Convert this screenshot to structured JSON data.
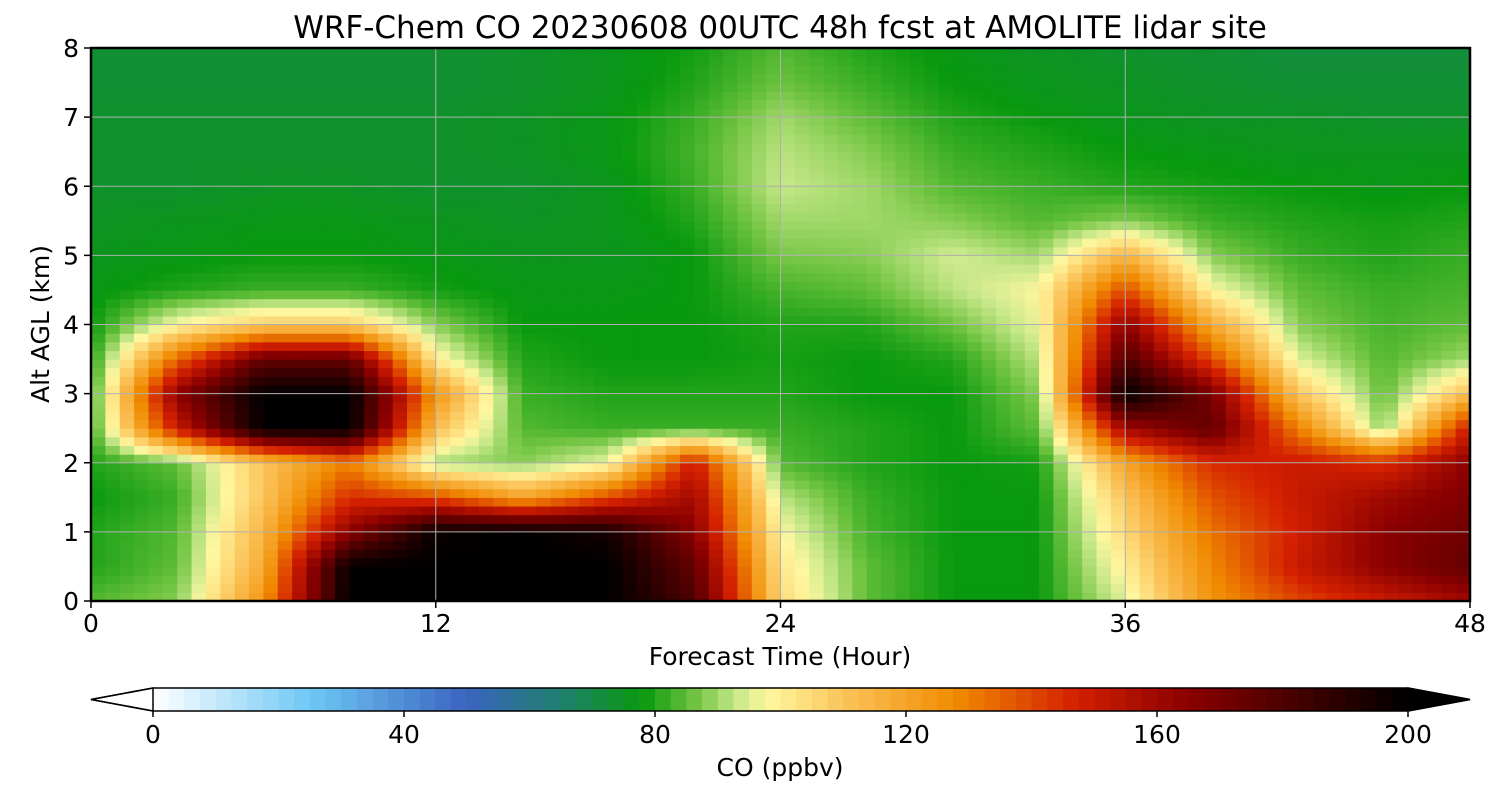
{
  "chart_data": {
    "type": "heatmap",
    "title": "WRF-Chem CO  20230608 00UTC 48h fcst at AMOLITE lidar site",
    "xlabel": "Forecast Time (Hour)",
    "ylabel": "Alt AGL (km)",
    "xlim": [
      0,
      48
    ],
    "ylim": [
      0,
      8
    ],
    "x_ticks": [
      0,
      12,
      24,
      36,
      48
    ],
    "y_ticks": [
      0,
      1,
      2,
      3,
      4,
      5,
      6,
      7,
      8
    ],
    "grid": true,
    "x": [
      0,
      3,
      6,
      9,
      12,
      15,
      18,
      21,
      24,
      27,
      30,
      33,
      36,
      39,
      42,
      45,
      48
    ],
    "y": [
      0,
      0.5,
      1,
      1.5,
      2,
      2.5,
      3,
      3.5,
      4,
      4.5,
      5,
      5.5,
      6,
      6.5,
      7,
      7.5,
      8
    ],
    "z": [
      [
        84,
        88,
        125,
        200,
        200,
        200,
        200,
        180,
        105,
        85,
        78,
        78,
        95,
        125,
        140,
        150,
        160
      ],
      [
        80,
        85,
        118,
        200,
        200,
        200,
        200,
        175,
        102,
        85,
        78,
        78,
        100,
        128,
        150,
        165,
        175
      ],
      [
        80,
        84,
        115,
        165,
        198,
        200,
        195,
        165,
        98,
        83,
        78,
        78,
        105,
        132,
        148,
        165,
        172
      ],
      [
        78,
        82,
        110,
        145,
        140,
        120,
        140,
        160,
        92,
        82,
        78,
        78,
        110,
        138,
        150,
        160,
        168
      ],
      [
        80,
        85,
        110,
        130,
        90,
        88,
        96,
        150,
        84,
        80,
        78,
        79,
        120,
        145,
        150,
        145,
        165
      ],
      [
        82,
        150,
        200,
        200,
        112,
        84,
        82,
        82,
        82,
        80,
        78,
        85,
        160,
        175,
        130,
        88,
        150
      ],
      [
        82,
        165,
        200,
        200,
        125,
        82,
        80,
        80,
        80,
        78,
        78,
        88,
        200,
        170,
        110,
        85,
        112
      ],
      [
        80,
        135,
        175,
        175,
        100,
        80,
        78,
        78,
        79,
        78,
        80,
        92,
        180,
        140,
        95,
        84,
        90
      ],
      [
        78,
        98,
        108,
        108,
        88,
        78,
        78,
        78,
        80,
        80,
        86,
        96,
        165,
        118,
        88,
        83,
        85
      ],
      [
        77,
        80,
        82,
        82,
        79,
        77,
        77,
        78,
        83,
        85,
        92,
        98,
        140,
        98,
        85,
        82,
        83
      ],
      [
        76,
        77,
        78,
        78,
        77,
        76,
        76,
        78,
        87,
        88,
        94,
        90,
        115,
        88,
        82,
        80,
        82
      ],
      [
        75,
        76,
        77,
        77,
        76,
        75,
        76,
        80,
        90,
        90,
        88,
        84,
        88,
        82,
        80,
        79,
        80
      ],
      [
        74,
        74,
        75,
        75,
        74,
        74,
        76,
        82,
        93,
        90,
        84,
        82,
        80,
        79,
        78,
        77,
        78
      ],
      [
        74,
        74,
        74,
        74,
        74,
        75,
        77,
        83,
        92,
        88,
        82,
        80,
        78,
        77,
        76,
        76,
        76
      ],
      [
        74,
        74,
        74,
        74,
        74,
        75,
        77,
        82,
        90,
        85,
        80,
        78,
        76,
        75,
        75,
        74,
        74
      ],
      [
        73,
        73,
        73,
        73,
        73,
        74,
        76,
        80,
        86,
        82,
        78,
        76,
        75,
        74,
        73,
        73,
        73
      ],
      [
        73,
        73,
        73,
        73,
        73,
        74,
        76,
        79,
        84,
        80,
        77,
        75,
        74,
        73,
        72,
        72,
        72
      ]
    ],
    "colorbar": {
      "label": "CO  (ppbv)",
      "min": 0,
      "max": 200,
      "ticks": [
        0,
        40,
        80,
        120,
        160,
        200
      ],
      "extend": "both",
      "stops": [
        {
          "v": 0,
          "c": "#ffffff"
        },
        {
          "v": 25,
          "c": "#6ec8f5"
        },
        {
          "v": 50,
          "c": "#3a64c0"
        },
        {
          "v": 65,
          "c": "#1f7f6e"
        },
        {
          "v": 78,
          "c": "#08990e"
        },
        {
          "v": 86,
          "c": "#6cc23e"
        },
        {
          "v": 93,
          "c": "#c8e88a"
        },
        {
          "v": 98,
          "c": "#fff7a0"
        },
        {
          "v": 110,
          "c": "#fbc45a"
        },
        {
          "v": 128,
          "c": "#f08a00"
        },
        {
          "v": 147,
          "c": "#d42000"
        },
        {
          "v": 165,
          "c": "#8b0000"
        },
        {
          "v": 185,
          "c": "#3a0000"
        },
        {
          "v": 200,
          "c": "#000000"
        }
      ]
    }
  }
}
